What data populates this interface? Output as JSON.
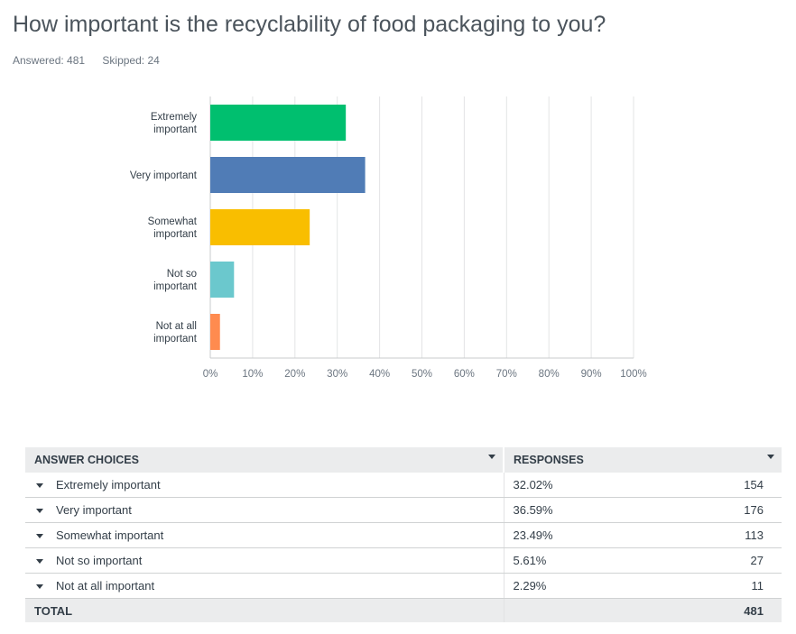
{
  "question": {
    "title": "How important is the recyclability of food packaging to you?",
    "answered": "Answered: 481",
    "skipped": "Skipped: 24"
  },
  "chart_data": {
    "type": "bar",
    "orientation": "horizontal",
    "categories": [
      [
        "Extremely",
        "important"
      ],
      [
        "Very important"
      ],
      [
        "Somewhat",
        "important"
      ],
      [
        "Not so",
        "important"
      ],
      [
        "Not at all",
        "important"
      ]
    ],
    "values": [
      32.02,
      36.59,
      23.49,
      5.61,
      2.29
    ],
    "colors": [
      "#00bf6f",
      "#507cb6",
      "#f9be00",
      "#6bc8cd",
      "#ff8b4f"
    ],
    "xlim": [
      0,
      100
    ],
    "xticks": [
      "0%",
      "10%",
      "20%",
      "30%",
      "40%",
      "50%",
      "60%",
      "70%",
      "80%",
      "90%",
      "100%"
    ],
    "grid": true
  },
  "table": {
    "headers": {
      "choices": "ANSWER CHOICES",
      "responses": "RESPONSES"
    },
    "rows": [
      {
        "label": "Extremely important",
        "percent": "32.02%",
        "count": "154"
      },
      {
        "label": "Very important",
        "percent": "36.59%",
        "count": "176"
      },
      {
        "label": "Somewhat important",
        "percent": "23.49%",
        "count": "113"
      },
      {
        "label": "Not so important",
        "percent": "5.61%",
        "count": "27"
      },
      {
        "label": "Not at all important",
        "percent": "2.29%",
        "count": "11"
      }
    ],
    "total": {
      "label": "TOTAL",
      "count": "481"
    }
  }
}
